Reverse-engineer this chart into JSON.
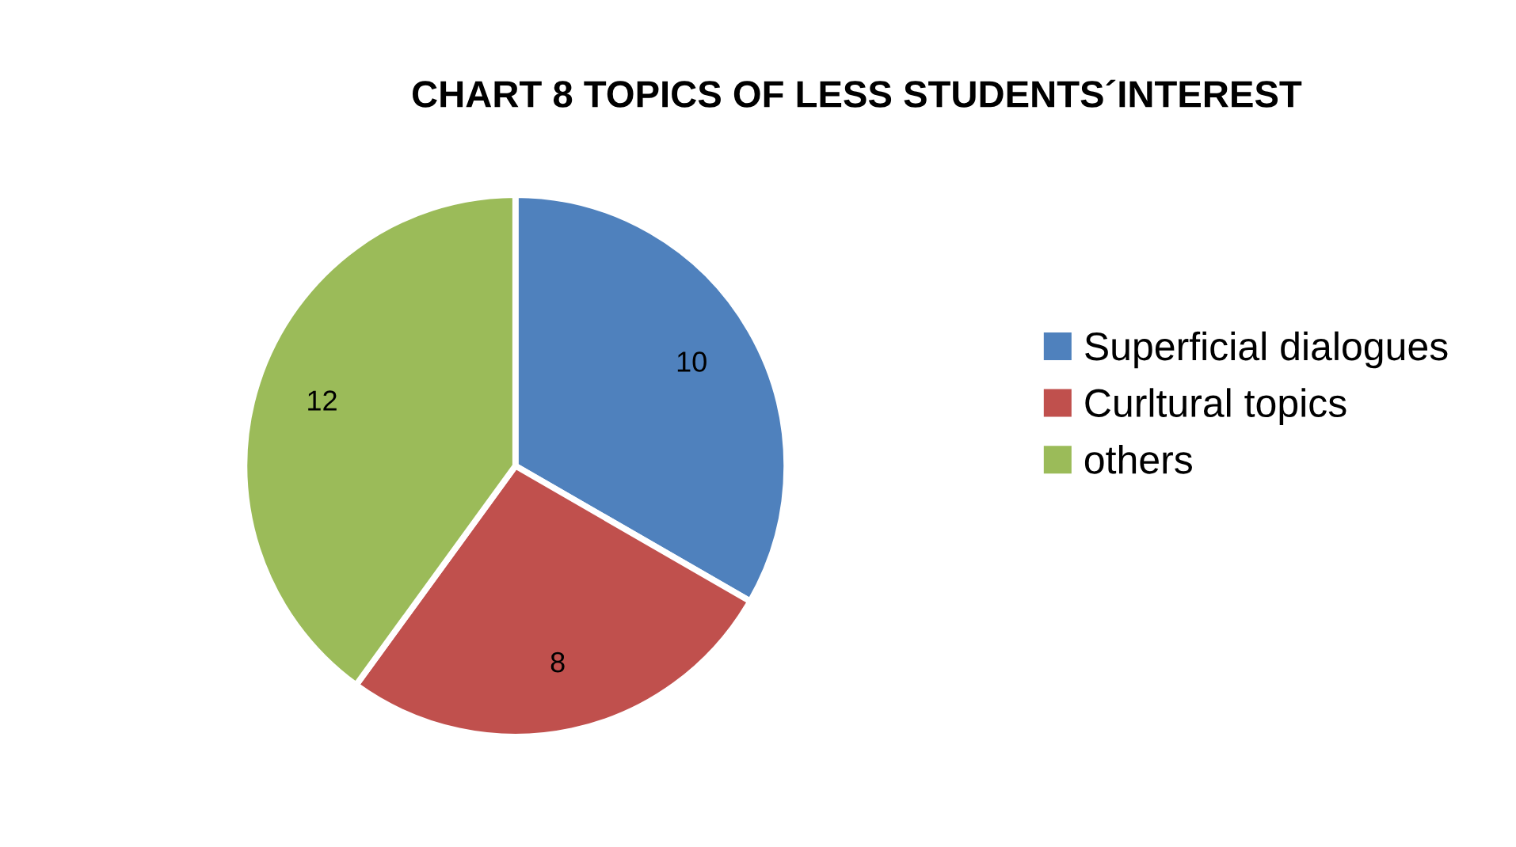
{
  "chart_data": {
    "type": "pie",
    "title": "CHART 8 TOPICS OF LESS STUDENTS´INTEREST",
    "categories": [
      "Superficial dialogues",
      "Curltural topics",
      "others"
    ],
    "values": [
      10,
      8,
      12
    ],
    "colors": [
      "#4f81bd",
      "#c0504d",
      "#9bbb59"
    ],
    "data_labels": true,
    "legend": "right"
  }
}
